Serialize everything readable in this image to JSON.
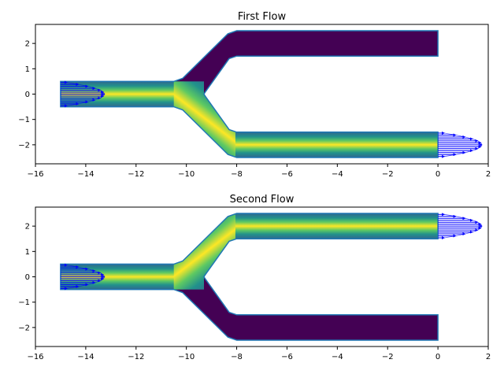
{
  "chart_data": [
    {
      "type": "heatmap",
      "title": "First Flow",
      "xlabel": "",
      "ylabel": "",
      "xlim": [
        -16,
        2
      ],
      "ylim": [
        -2.75,
        2.75
      ],
      "x_ticks": [
        -16,
        -14,
        -12,
        -10,
        -8,
        -6,
        -4,
        -2,
        0,
        2
      ],
      "y_ticks": [
        -2,
        -1,
        0,
        1,
        2
      ],
      "x_tick_labels": [
        "−16",
        "−14",
        "−12",
        "−10",
        "−8",
        "−6",
        "−4",
        "−2",
        "0",
        "2"
      ],
      "y_tick_labels": [
        "−2",
        "−1",
        "0",
        "1",
        "2"
      ],
      "channel": {
        "inlet_y": 0,
        "inlet_x": [
          -15,
          -10.5
        ],
        "branch_start_x": -10.5,
        "branch_end_x": -8,
        "outlet_x": [
          -8,
          0
        ],
        "upper_outlet_y": 2,
        "lower_outlet_y": -2,
        "half_width": 0.5
      },
      "active_branch": "lower",
      "inlet_profile": {
        "x": -15,
        "peak_velocity": 1.75
      },
      "outlet_profile": {
        "x": 0,
        "y": -2,
        "peak_velocity": 1.75
      },
      "colors": {
        "high": "#fde725",
        "mid": "#21918c",
        "low": "#440154",
        "edge": "#1f77b4",
        "arrows": "#0000ff"
      }
    },
    {
      "type": "heatmap",
      "title": "Second Flow",
      "xlabel": "",
      "ylabel": "",
      "xlim": [
        -16,
        2
      ],
      "ylim": [
        -2.75,
        2.75
      ],
      "x_ticks": [
        -16,
        -14,
        -12,
        -10,
        -8,
        -6,
        -4,
        -2,
        0,
        2
      ],
      "y_ticks": [
        -2,
        -1,
        0,
        1,
        2
      ],
      "x_tick_labels": [
        "−16",
        "−14",
        "−12",
        "−10",
        "−8",
        "−6",
        "−4",
        "−2",
        "0",
        "2"
      ],
      "y_tick_labels": [
        "−2",
        "−1",
        "0",
        "1",
        "2"
      ],
      "channel": {
        "inlet_y": 0,
        "inlet_x": [
          -15,
          -10.5
        ],
        "branch_start_x": -10.5,
        "branch_end_x": -8,
        "outlet_x": [
          -8,
          0
        ],
        "upper_outlet_y": 2,
        "lower_outlet_y": -2,
        "half_width": 0.5
      },
      "active_branch": "upper",
      "inlet_profile": {
        "x": -15,
        "peak_velocity": 1.75
      },
      "outlet_profile": {
        "x": 0,
        "y": 2,
        "peak_velocity": 1.75
      },
      "colors": {
        "high": "#fde725",
        "mid": "#21918c",
        "low": "#440154",
        "edge": "#1f77b4",
        "arrows": "#0000ff"
      }
    }
  ]
}
